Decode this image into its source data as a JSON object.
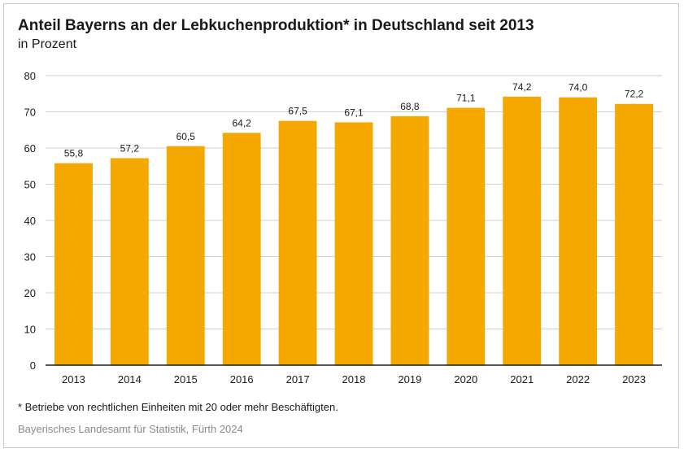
{
  "chart_data": {
    "type": "bar",
    "title": "Anteil Bayerns an der Lebkuchenproduktion* in Deutschland seit 2013",
    "subtitle": "in Prozent",
    "categories": [
      "2013",
      "2014",
      "2015",
      "2016",
      "2017",
      "2018",
      "2019",
      "2020",
      "2021",
      "2022",
      "2023"
    ],
    "values": [
      55.8,
      57.2,
      60.5,
      64.2,
      67.5,
      67.1,
      68.8,
      71.1,
      74.2,
      74.0,
      72.2
    ],
    "value_labels": [
      "55,8",
      "57,2",
      "60,5",
      "64,2",
      "67,5",
      "67,1",
      "68,8",
      "71,1",
      "74,2",
      "74,0",
      "72,2"
    ],
    "ylim": [
      0,
      80
    ],
    "yticks": [
      0,
      10,
      20,
      30,
      40,
      50,
      60,
      70,
      80
    ],
    "grid": true,
    "bar_color": "#f5a800",
    "footnote": "* Betriebe von rechtlichen Einheiten mit 20 oder mehr Beschäftigten.",
    "source": "Bayerisches Landesamt für Statistik, Fürth 2024"
  }
}
